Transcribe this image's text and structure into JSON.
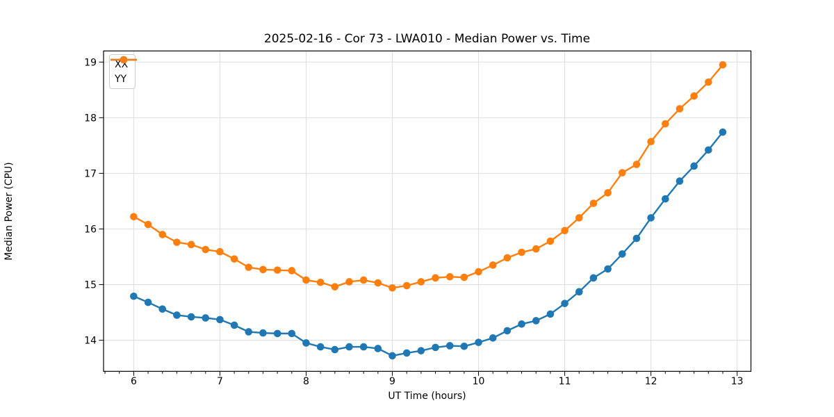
{
  "chart_data": {
    "type": "line",
    "title": "2025-02-16 - Cor 73 - LWA010 - Median Power vs. Time",
    "xlabel": "UT Time (hours)",
    "ylabel": "Median Power (CPU)",
    "legend_position": "upper left",
    "grid": true,
    "marker": "o",
    "xlim": [
      5.65,
      13.16
    ],
    "ylim": [
      13.44,
      19.2
    ],
    "x_ticks": [
      6,
      7,
      8,
      9,
      10,
      11,
      12,
      13
    ],
    "y_ticks": [
      14,
      15,
      16,
      17,
      18,
      19
    ],
    "minor_x_tick_step": 0.16667,
    "x": [
      6.0,
      6.167,
      6.333,
      6.5,
      6.667,
      6.833,
      7.0,
      7.167,
      7.333,
      7.5,
      7.667,
      7.833,
      8.0,
      8.167,
      8.333,
      8.5,
      8.667,
      8.833,
      9.0,
      9.167,
      9.333,
      9.5,
      9.667,
      9.833,
      10.0,
      10.167,
      10.333,
      10.5,
      10.667,
      10.833,
      11.0,
      11.167,
      11.333,
      11.5,
      11.667,
      11.833,
      12.0,
      12.167,
      12.333,
      12.5,
      12.667,
      12.833
    ],
    "series": [
      {
        "name": "XX",
        "color": "#1f77b4",
        "values": [
          14.79,
          14.68,
          14.56,
          14.45,
          14.42,
          14.4,
          14.37,
          14.27,
          14.15,
          14.13,
          14.12,
          14.12,
          13.95,
          13.88,
          13.83,
          13.88,
          13.88,
          13.85,
          13.72,
          13.77,
          13.81,
          13.87,
          13.9,
          13.89,
          13.96,
          14.04,
          14.17,
          14.29,
          14.35,
          14.47,
          14.66,
          14.87,
          15.12,
          15.28,
          15.55,
          15.83,
          16.2,
          16.54,
          16.86,
          17.13,
          17.42,
          17.74
        ]
      },
      {
        "name": "YY",
        "color": "#ff7f0e",
        "values": [
          16.22,
          16.08,
          15.9,
          15.76,
          15.72,
          15.63,
          15.59,
          15.46,
          15.31,
          15.27,
          15.26,
          15.25,
          15.08,
          15.04,
          14.96,
          15.05,
          15.08,
          15.03,
          14.94,
          14.98,
          15.05,
          15.12,
          15.14,
          15.13,
          15.23,
          15.35,
          15.48,
          15.58,
          15.64,
          15.78,
          15.97,
          16.2,
          16.46,
          16.65,
          17.01,
          17.16,
          17.57,
          17.89,
          18.16,
          18.39,
          18.64,
          18.95
        ]
      }
    ]
  }
}
